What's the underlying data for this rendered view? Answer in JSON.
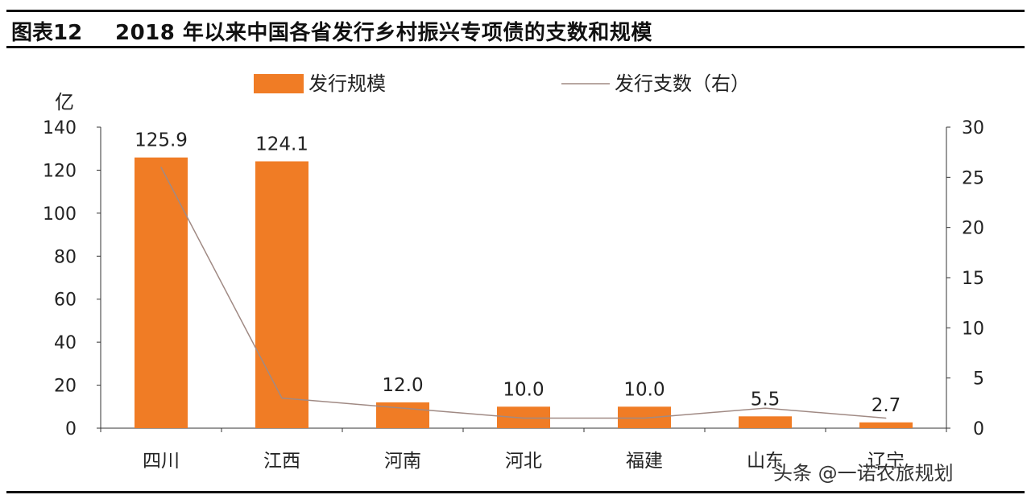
{
  "header": {
    "figure_label": "图表12",
    "figure_title": "2018 年以来中国各省发行乡村振兴专项债的支数和规模"
  },
  "watermark": "头条 @一诺农旅规划",
  "colors": {
    "bar": "#f07c25",
    "line": "#a08a84",
    "axis": "#333333"
  },
  "chart_data": {
    "type": "bar",
    "categories": [
      "四川",
      "江西",
      "河南",
      "河北",
      "福建",
      "山东",
      "辽宁"
    ],
    "ylabel": "亿",
    "ylim": [
      0,
      140
    ],
    "yticks": [
      "0",
      "20",
      "40",
      "60",
      "80",
      "100",
      "120",
      "140"
    ],
    "y2lim": [
      0,
      30
    ],
    "y2ticks": [
      "0",
      "5",
      "10",
      "15",
      "20",
      "25",
      "30"
    ],
    "legend": {
      "bar_label": "发行规模",
      "line_label": "发行支数（右）",
      "position": "top"
    },
    "series": [
      {
        "name": "发行规模",
        "type": "bar",
        "axis": "left",
        "values": [
          125.9,
          124.1,
          12.0,
          10.0,
          10.0,
          5.5,
          2.7
        ],
        "labels": [
          "125.9",
          "124.1",
          "12.0",
          "10.0",
          "10.0",
          "5.5",
          "2.7"
        ]
      },
      {
        "name": "发行支数（右）",
        "type": "line",
        "axis": "right",
        "values": [
          26,
          3,
          2,
          1,
          1,
          2,
          1
        ]
      }
    ]
  }
}
